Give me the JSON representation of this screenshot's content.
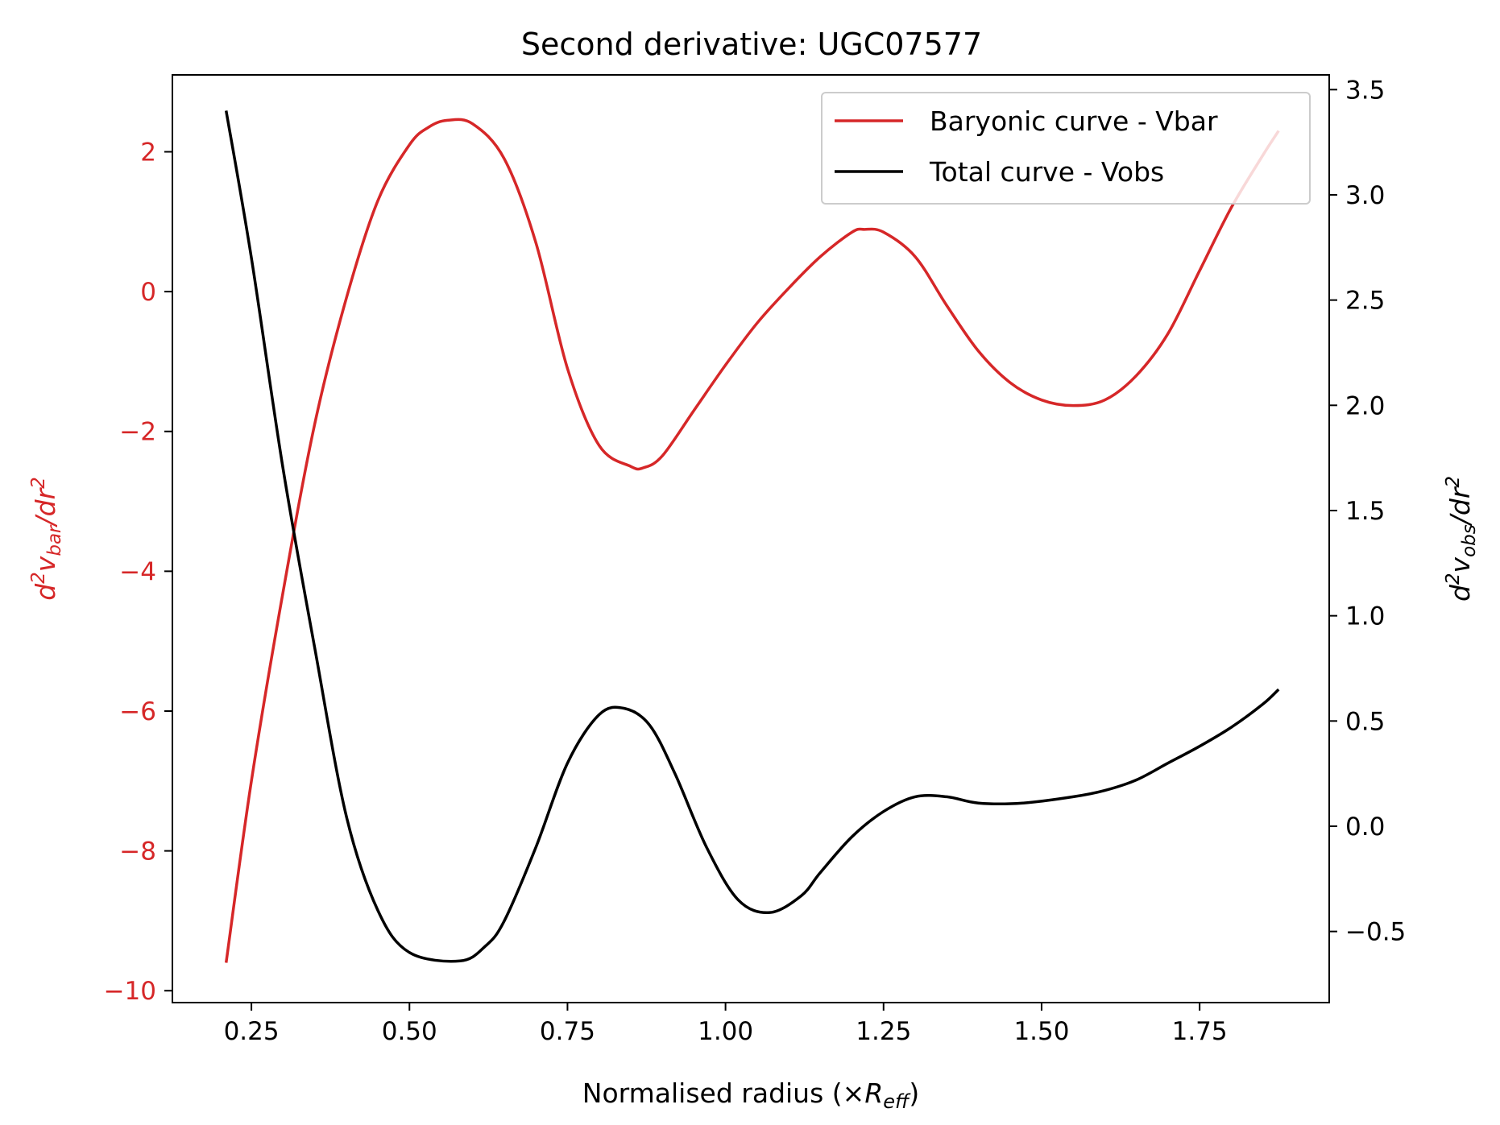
{
  "chart_data": {
    "type": "line",
    "title": "Second derivative: UGC07577",
    "xlabel": {
      "prefix": "Normalised radius (×",
      "var": "R",
      "sub": "eff",
      "suffix": ")"
    },
    "ylabel_left": {
      "d": "d",
      "sup1": "2",
      "v": "v",
      "sub": "bar",
      "dr": "/dr",
      "sup2": "2"
    },
    "ylabel_right": {
      "d": "d",
      "sup1": "2",
      "v": "v",
      "sub": "obs",
      "dr": "/dr",
      "sup2": "2"
    },
    "xlim": [
      0.125,
      1.955
    ],
    "ylim_left": [
      -10.17,
      3.1
    ],
    "ylim_right": [
      -0.838,
      3.57
    ],
    "x_ticks": [
      0.25,
      0.5,
      0.75,
      1.0,
      1.25,
      1.5,
      1.75
    ],
    "x_tick_labels": [
      "0.25",
      "0.50",
      "0.75",
      "1.00",
      "1.25",
      "1.50",
      "1.75"
    ],
    "y_left_ticks": [
      -10,
      -8,
      -6,
      -4,
      -2,
      0,
      2
    ],
    "y_left_tick_labels": [
      "−10",
      "−8",
      "−6",
      "−4",
      "−2",
      "0",
      "2"
    ],
    "y_right_ticks": [
      -0.5,
      0.0,
      0.5,
      1.0,
      1.5,
      2.0,
      2.5,
      3.0,
      3.5
    ],
    "y_right_tick_labels": [
      "−0.5",
      "0.0",
      "0.5",
      "1.0",
      "1.5",
      "2.0",
      "2.5",
      "3.0",
      "3.5"
    ],
    "legend_position": "top-right",
    "grid": false,
    "series": [
      {
        "name": "Baryonic curve - Vbar",
        "axis": "left",
        "color": "#d62728",
        "points": [
          [
            0.21,
            -9.6
          ],
          [
            0.25,
            -7.0
          ],
          [
            0.3,
            -4.3
          ],
          [
            0.35,
            -1.9
          ],
          [
            0.4,
            -0.1
          ],
          [
            0.45,
            1.3
          ],
          [
            0.5,
            2.1
          ],
          [
            0.53,
            2.35
          ],
          [
            0.56,
            2.45
          ],
          [
            0.6,
            2.4
          ],
          [
            0.65,
            1.9
          ],
          [
            0.7,
            0.7
          ],
          [
            0.75,
            -1.1
          ],
          [
            0.8,
            -2.2
          ],
          [
            0.85,
            -2.5
          ],
          [
            0.87,
            -2.52
          ],
          [
            0.9,
            -2.35
          ],
          [
            0.95,
            -1.7
          ],
          [
            1.0,
            -1.05
          ],
          [
            1.05,
            -0.45
          ],
          [
            1.1,
            0.05
          ],
          [
            1.15,
            0.5
          ],
          [
            1.2,
            0.85
          ],
          [
            1.22,
            0.89
          ],
          [
            1.25,
            0.85
          ],
          [
            1.3,
            0.5
          ],
          [
            1.35,
            -0.2
          ],
          [
            1.4,
            -0.85
          ],
          [
            1.45,
            -1.3
          ],
          [
            1.5,
            -1.55
          ],
          [
            1.55,
            -1.63
          ],
          [
            1.6,
            -1.55
          ],
          [
            1.65,
            -1.2
          ],
          [
            1.7,
            -0.6
          ],
          [
            1.75,
            0.3
          ],
          [
            1.8,
            1.2
          ],
          [
            1.85,
            1.95
          ],
          [
            1.875,
            2.3
          ]
        ]
      },
      {
        "name": "Total curve - Vobs",
        "axis": "right",
        "color": "#000000",
        "points": [
          [
            0.21,
            3.4
          ],
          [
            0.25,
            2.7
          ],
          [
            0.3,
            1.7
          ],
          [
            0.35,
            0.85
          ],
          [
            0.4,
            0.05
          ],
          [
            0.45,
            -0.4
          ],
          [
            0.5,
            -0.6
          ],
          [
            0.58,
            -0.64
          ],
          [
            0.62,
            -0.57
          ],
          [
            0.65,
            -0.45
          ],
          [
            0.7,
            -0.1
          ],
          [
            0.75,
            0.3
          ],
          [
            0.8,
            0.53
          ],
          [
            0.84,
            0.56
          ],
          [
            0.88,
            0.48
          ],
          [
            0.92,
            0.25
          ],
          [
            0.97,
            -0.1
          ],
          [
            1.02,
            -0.35
          ],
          [
            1.07,
            -0.41
          ],
          [
            1.12,
            -0.33
          ],
          [
            1.15,
            -0.22
          ],
          [
            1.2,
            -0.05
          ],
          [
            1.25,
            0.07
          ],
          [
            1.3,
            0.14
          ],
          [
            1.35,
            0.14
          ],
          [
            1.4,
            0.11
          ],
          [
            1.47,
            0.11
          ],
          [
            1.55,
            0.14
          ],
          [
            1.6,
            0.17
          ],
          [
            1.65,
            0.22
          ],
          [
            1.7,
            0.3
          ],
          [
            1.75,
            0.38
          ],
          [
            1.8,
            0.47
          ],
          [
            1.85,
            0.58
          ],
          [
            1.875,
            0.65
          ]
        ]
      }
    ]
  }
}
